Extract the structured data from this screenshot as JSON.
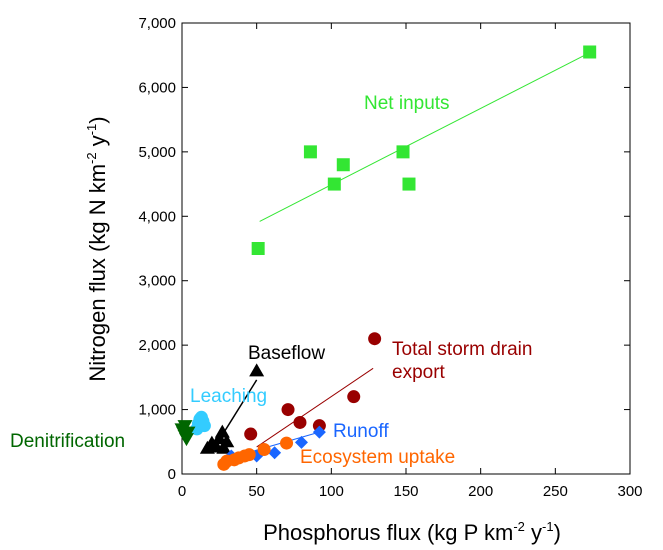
{
  "chart_data": {
    "type": "scatter",
    "xlabel": "Phosphorus flux (kg P km",
    "xlabel_sup1": "-2",
    "xlabel_mid": " y",
    "xlabel_sup2": "-1",
    "xlabel_end": ")",
    "ylabel": "Nitrogen flux (kg N km",
    "ylabel_sup1": "-2",
    "ylabel_mid": " y",
    "ylabel_sup2": "-1",
    "ylabel_end": ")",
    "xlim": [
      0,
      300
    ],
    "ylim": [
      0,
      7000
    ],
    "xticks": [
      0,
      50,
      100,
      150,
      200,
      250,
      300
    ],
    "xtick_labels": [
      "0",
      "50",
      "100",
      "150",
      "200",
      "250",
      "300"
    ],
    "yticks": [
      0,
      1000,
      2000,
      3000,
      4000,
      5000,
      6000,
      7000
    ],
    "ytick_labels": [
      "0",
      "1,000",
      "2,000",
      "3,000",
      "4,000",
      "5,000",
      "6,000",
      "7,000"
    ],
    "grid": false,
    "series": [
      {
        "name": "Net inputs",
        "color": "#33e633",
        "marker": "square",
        "points": [
          [
            51,
            3500
          ],
          [
            86,
            5000
          ],
          [
            102,
            4500
          ],
          [
            108,
            4800
          ],
          [
            148,
            5000
          ],
          [
            152,
            4500
          ],
          [
            273,
            6550
          ]
        ],
        "fit_line": [
          [
            52,
            3920
          ],
          [
            273,
            6540
          ]
        ]
      },
      {
        "name": "Total storm drain\nexport",
        "color": "#990000",
        "marker": "circle",
        "points": [
          [
            46,
            620
          ],
          [
            71,
            1000
          ],
          [
            79,
            800
          ],
          [
            92,
            750
          ],
          [
            115,
            1200
          ],
          [
            129,
            2100
          ]
        ],
        "fit_line": [
          [
            50,
            420
          ],
          [
            128,
            1640
          ]
        ]
      },
      {
        "name": "Baseflow",
        "color": "#000000",
        "marker": "triangle",
        "points": [
          [
            17,
            400
          ],
          [
            20,
            480
          ],
          [
            23,
            420
          ],
          [
            25,
            550
          ],
          [
            27,
            650
          ],
          [
            28,
            400
          ],
          [
            30,
            500
          ],
          [
            50,
            1600
          ]
        ],
        "fit_line": [
          [
            22,
            420
          ],
          [
            50,
            1460
          ]
        ]
      },
      {
        "name": "Leaching",
        "color": "#33ccff",
        "marker": "circle",
        "points": [
          [
            10,
            700
          ],
          [
            11,
            780
          ],
          [
            12,
            850
          ],
          [
            13,
            880
          ],
          [
            14,
            820
          ],
          [
            15,
            750
          ]
        ]
      },
      {
        "name": "Runoff",
        "color": "#1a66ff",
        "marker": "diamond",
        "points": [
          [
            33,
            280
          ],
          [
            50,
            280
          ],
          [
            62,
            330
          ],
          [
            80,
            490
          ],
          [
            92,
            650
          ]
        ],
        "fit_line": [
          [
            32,
            250
          ],
          [
            92,
            650
          ]
        ]
      },
      {
        "name": "Ecosystem uptake",
        "color": "#ff6600",
        "marker": "circle",
        "points": [
          [
            28,
            150
          ],
          [
            30,
            200
          ],
          [
            35,
            220
          ],
          [
            38,
            250
          ],
          [
            42,
            280
          ],
          [
            45,
            300
          ],
          [
            55,
            380
          ],
          [
            70,
            480
          ]
        ]
      },
      {
        "name": "Denitrification",
        "color": "#006600",
        "marker": "triangle-down",
        "points": [
          [
            0,
            700
          ],
          [
            1,
            650
          ],
          [
            2,
            600
          ],
          [
            3,
            550
          ],
          [
            4,
            650
          ],
          [
            2,
            750
          ]
        ]
      }
    ]
  }
}
